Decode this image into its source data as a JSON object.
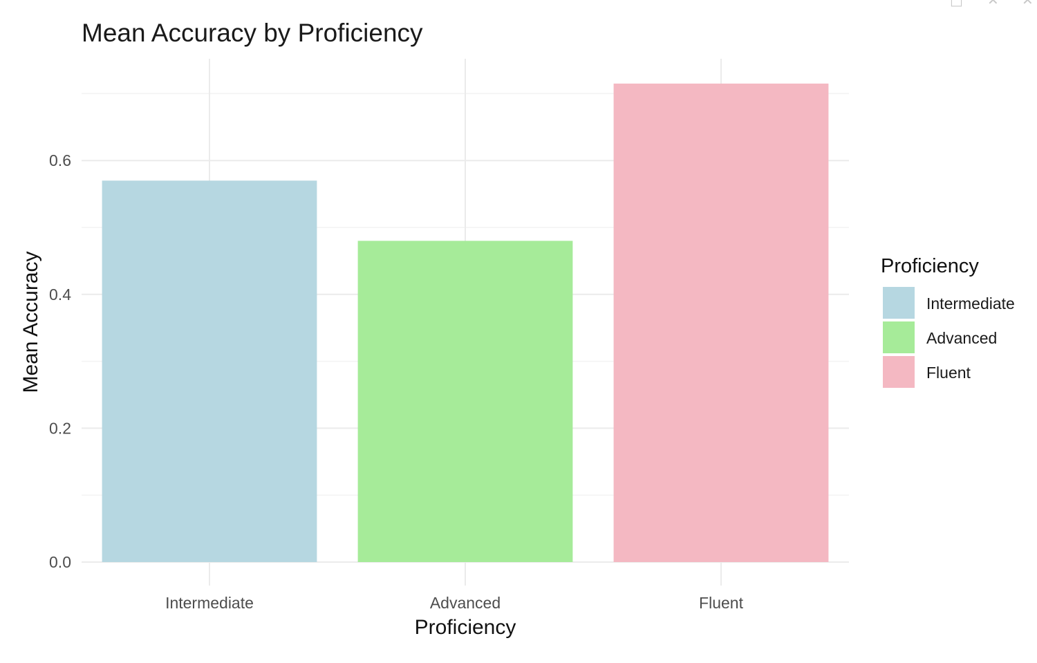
{
  "window": {
    "controls": [
      "□",
      "✕",
      "✕"
    ]
  },
  "chart_data": {
    "type": "bar",
    "title": "Mean Accuracy by Proficiency",
    "xlabel": "Proficiency",
    "ylabel": "Mean Accuracy",
    "categories": [
      "Intermediate",
      "Advanced",
      "Fluent"
    ],
    "values": [
      0.57,
      0.48,
      0.715
    ],
    "colors": [
      "#b6d7e1",
      "#a6eb99",
      "#f4b8c2"
    ],
    "ylim": [
      0,
      0.72
    ],
    "yticks": [
      0.0,
      0.2,
      0.4,
      0.6
    ],
    "ytick_labels": [
      "0.0",
      "0.2",
      "0.4",
      "0.6"
    ],
    "grid": true,
    "legend": {
      "title": "Proficiency",
      "position": "right",
      "entries": [
        "Intermediate",
        "Advanced",
        "Fluent"
      ]
    }
  }
}
